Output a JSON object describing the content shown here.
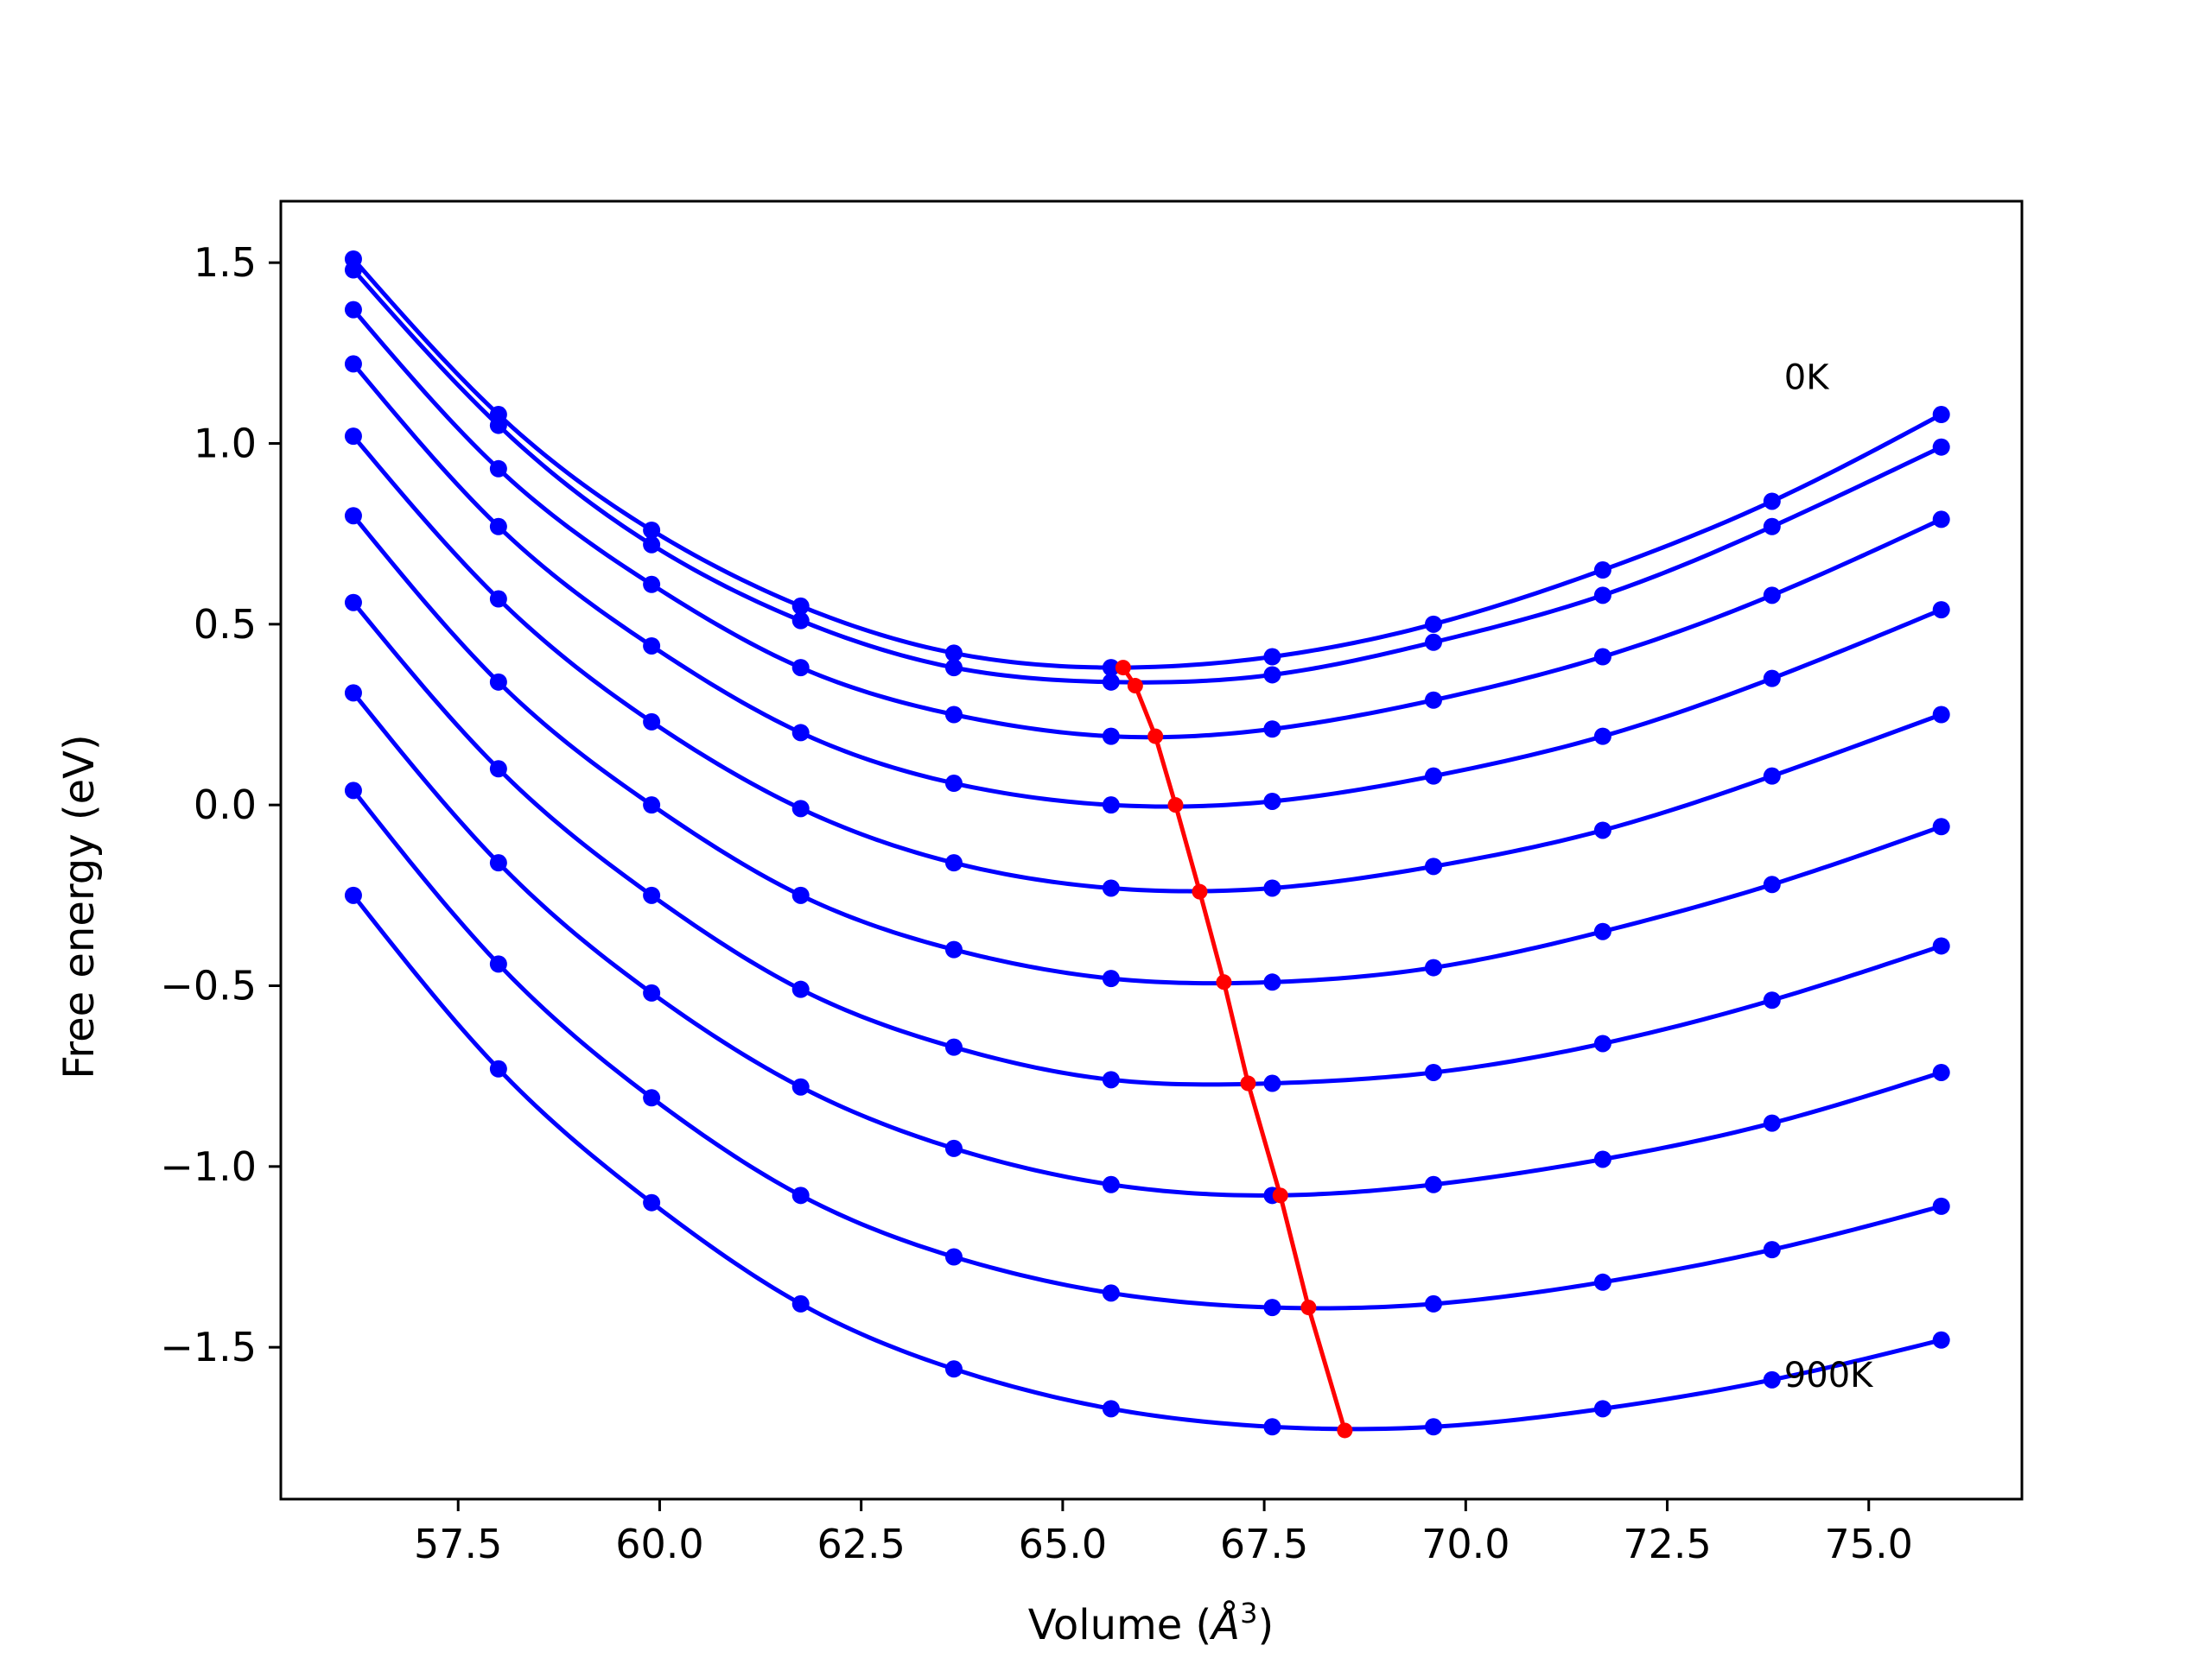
{
  "chart_data": {
    "type": "line",
    "title": "",
    "xlabel_prefix": "Volume (",
    "xlabel_symbol": "Å",
    "xlabel_exponent": "3",
    "xlabel_suffix": ")",
    "ylabel": "Free energy (eV)",
    "xlim": [
      55.3,
      76.9
    ],
    "ylim": [
      -1.92,
      1.67
    ],
    "xticks": [
      57.5,
      60.0,
      62.5,
      65.0,
      67.5,
      70.0,
      72.5,
      75.0
    ],
    "xtick_labels": [
      "57.5",
      "60.0",
      "62.5",
      "65.0",
      "67.5",
      "70.0",
      "72.5",
      "75.0"
    ],
    "yticks": [
      1.5,
      1.0,
      0.5,
      0.0,
      -0.5,
      -1.0,
      -1.5
    ],
    "ytick_labels": [
      "1.5",
      "1.0",
      "0.5",
      "0.0",
      "−0.5",
      "−1.0",
      "−1.5"
    ],
    "x": [
      56.2,
      58.0,
      59.9,
      61.75,
      63.65,
      65.6,
      67.6,
      69.6,
      71.7,
      73.8,
      75.9
    ],
    "series": [
      {
        "color": "#0000ff",
        "values": [
          1.51,
          1.08,
          0.76,
          0.55,
          0.42,
          0.38,
          0.41,
          0.5,
          0.65,
          0.84,
          1.08
        ]
      },
      {
        "color": "#0000ff",
        "values": [
          1.48,
          1.05,
          0.72,
          0.51,
          0.38,
          0.34,
          0.36,
          0.45,
          0.58,
          0.77,
          0.99
        ]
      },
      {
        "color": "#0000ff",
        "values": [
          1.37,
          0.93,
          0.61,
          0.38,
          0.25,
          0.19,
          0.21,
          0.29,
          0.41,
          0.58,
          0.79
        ]
      },
      {
        "color": "#0000ff",
        "values": [
          1.22,
          0.77,
          0.44,
          0.2,
          0.06,
          0.0,
          0.01,
          0.08,
          0.19,
          0.35,
          0.54
        ]
      },
      {
        "color": "#0000ff",
        "values": [
          1.02,
          0.57,
          0.23,
          -0.01,
          -0.16,
          -0.23,
          -0.23,
          -0.17,
          -0.07,
          0.08,
          0.25
        ]
      },
      {
        "color": "#0000ff",
        "values": [
          0.8,
          0.34,
          0.0,
          -0.25,
          -0.4,
          -0.48,
          -0.49,
          -0.45,
          -0.35,
          -0.22,
          -0.06
        ]
      },
      {
        "color": "#0000ff",
        "values": [
          0.56,
          0.1,
          -0.25,
          -0.51,
          -0.67,
          -0.76,
          -0.77,
          -0.74,
          -0.66,
          -0.54,
          -0.39
        ]
      },
      {
        "color": "#0000ff",
        "values": [
          0.31,
          -0.16,
          -0.52,
          -0.78,
          -0.95,
          -1.05,
          -1.08,
          -1.05,
          -0.98,
          -0.88,
          -0.74
        ]
      },
      {
        "color": "#0000ff",
        "values": [
          0.04,
          -0.44,
          -0.81,
          -1.08,
          -1.25,
          -1.35,
          -1.39,
          -1.38,
          -1.32,
          -1.23,
          -1.11
        ]
      },
      {
        "color": "#0000ff",
        "values": [
          -0.25,
          -0.73,
          -1.1,
          -1.38,
          -1.56,
          -1.67,
          -1.72,
          -1.72,
          -1.67,
          -1.59,
          -1.48
        ]
      }
    ],
    "minima": {
      "color": "#ff0000",
      "x": [
        65.75,
        65.9,
        66.15,
        66.4,
        66.7,
        67.0,
        67.3,
        67.7,
        68.05,
        68.5
      ],
      "y": [
        0.38,
        0.33,
        0.19,
        0.0,
        -0.24,
        -0.49,
        -0.77,
        -1.08,
        -1.39,
        -1.73
      ]
    },
    "annotations": [
      {
        "text": "0K",
        "x": 73.95,
        "y": 1.15
      },
      {
        "text": "900K",
        "x": 73.95,
        "y": -1.61
      }
    ]
  }
}
